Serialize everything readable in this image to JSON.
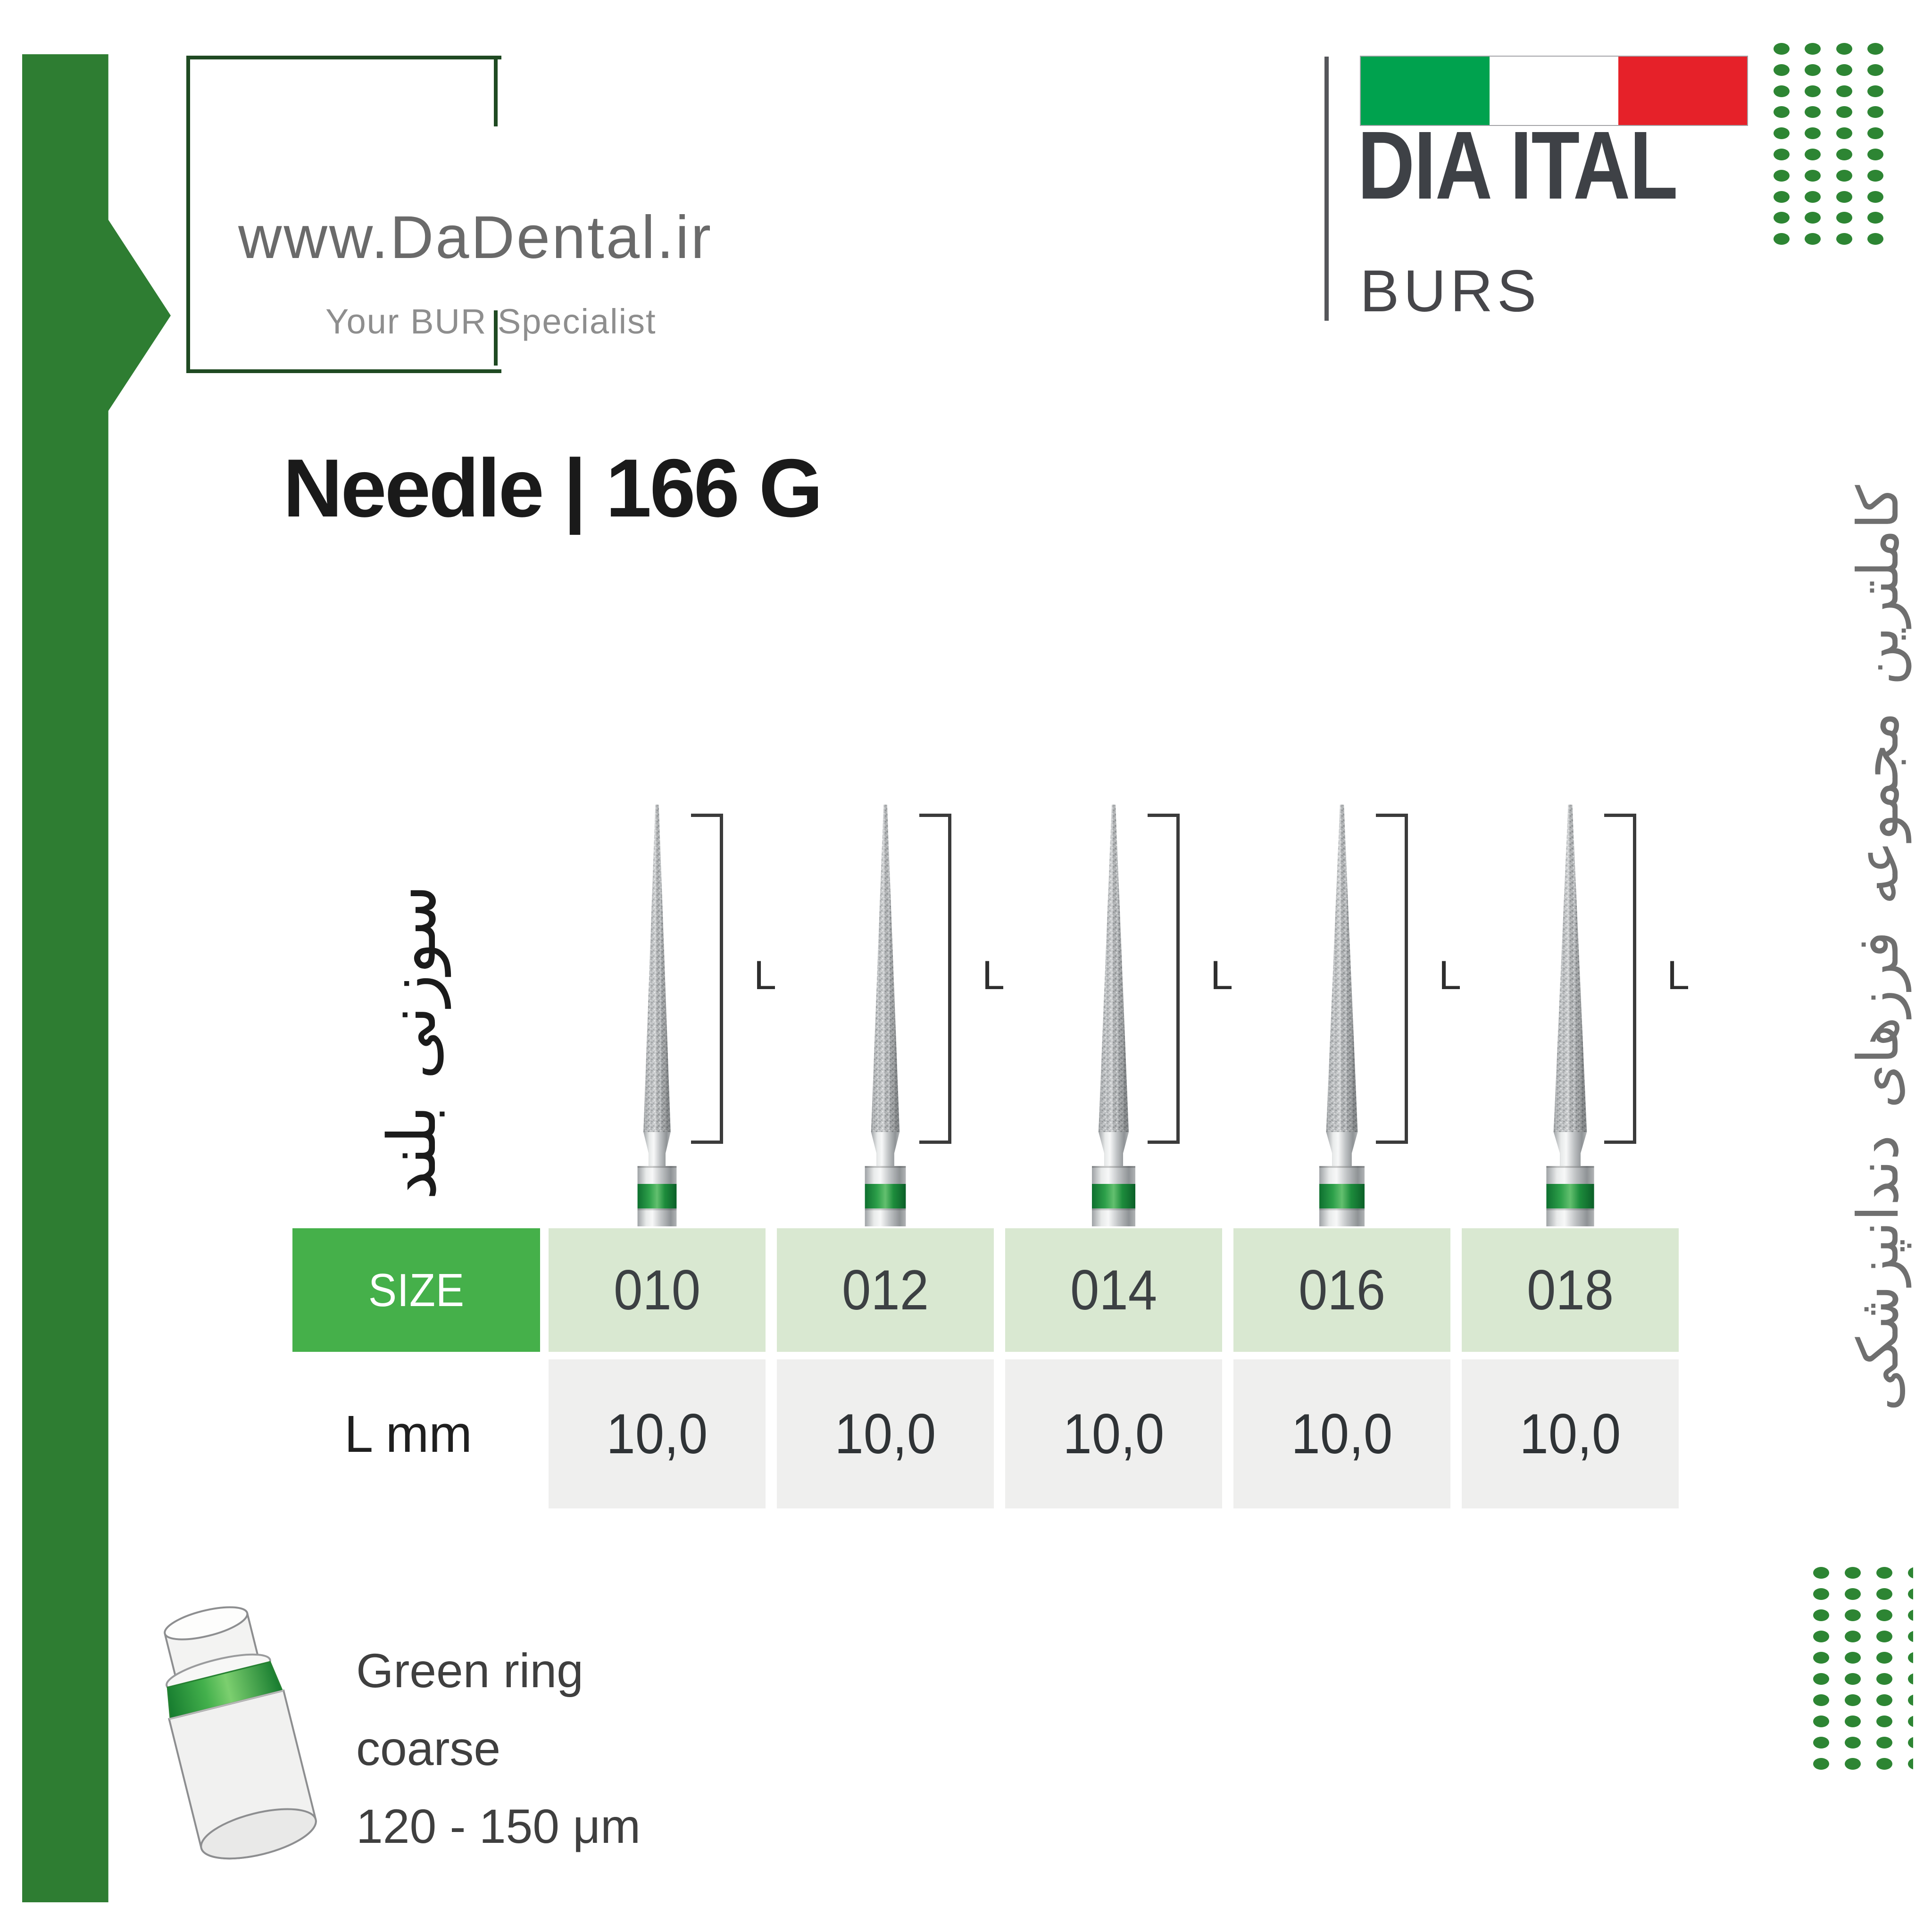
{
  "brand_box": {
    "url": "www.DaDental.ir",
    "tagline": "Your BUR Specialist"
  },
  "logo": {
    "name": "DIA ITAL",
    "subtitle": "BURS",
    "flag": "italian-flag"
  },
  "title": "Needle | 166 G",
  "persian_side_text": "کاملترین مجموعه فرزهای دندانپزشکی",
  "persian_product_text": "سوزنی بلند",
  "bracket_label": "L",
  "table": {
    "size_header": "SIZE",
    "sizes": [
      "010",
      "012",
      "014",
      "016",
      "018"
    ],
    "lmm_label": "L mm",
    "lmm_values": [
      "10,0",
      "10,0",
      "10,0",
      "10,0",
      "10,0"
    ]
  },
  "legend": {
    "line1": "Green ring",
    "line2": "coarse",
    "line3": "120 - 150 μm"
  },
  "colors": {
    "ribbon_green": "#2e7d32",
    "box_border_green": "#1f4a22",
    "size_header_green": "#45b04a",
    "light_green_cell": "#d9e8d1",
    "light_gray_cell": "#efefee",
    "flag_green": "#00a24e",
    "flag_red": "#e62129",
    "dots_green": "#2d8533",
    "bur_ring_green": "#1d8c3c"
  }
}
